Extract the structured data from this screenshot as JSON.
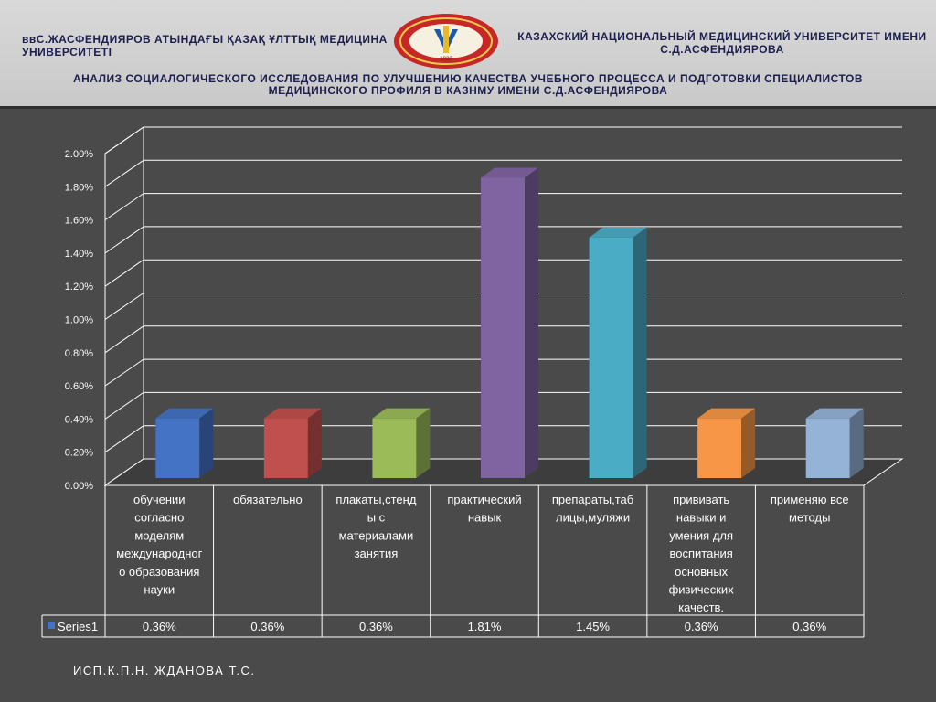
{
  "header": {
    "university_kz": "ввС.ЖАСФЕНДИЯРОВ АТЫНДАҒЫ  ҚАЗАҚ ҰЛТТЫҚ МЕДИЦИНА УНИВЕРСИТЕТІ",
    "university_ru": "КАЗАХСКИЙ НАЦИОНАЛЬНЫЙ МЕДИЦИНСКИЙ УНИВЕРСИТЕТ ИМЕНИ  С.Д.АСФЕНДИЯРОВА",
    "subtitle": "АНАЛИЗ СОЦИАЛОГИЧЕСКОГО ИССЛЕДОВАНИЯ ПО УЛУЧШЕНИЮ КАЧЕСТВА УЧЕБНОГО ПРОЦЕССА И ПОДГОТОВКИ СПЕЦИАЛИСТОВ МЕДИЦИНСКОГО ПРОФИЛЯ В КАЗНМУ ИМЕНИ С.Д.АСФЕНДИЯРОВА",
    "logo_text": "1930"
  },
  "chart_data": {
    "type": "bar",
    "categories": [
      "обучении согласно моделям международного образования науки",
      "обязательно",
      "плакаты,стенды с материалами занятия",
      "практический навык",
      "препараты,таблицы,муляжи",
      "прививать навыки и умения для воспитания основных физических качеств.",
      "применяю все методы"
    ],
    "category_lines": [
      [
        "обучении",
        "согласно",
        "моделям",
        "международног",
        "о образования",
        "науки"
      ],
      [
        "обязательно"
      ],
      [
        "плакаты,стенд",
        "ы с",
        "материалами",
        "занятия"
      ],
      [
        "практический",
        "навык"
      ],
      [
        "препараты,таб",
        "лицы,муляжи"
      ],
      [
        "прививать",
        "навыки и",
        "умения для",
        "воспитания",
        "основных",
        "физических",
        "качеств."
      ],
      [
        "применяю все",
        "методы"
      ]
    ],
    "series": [
      {
        "name": "Series1",
        "values": [
          0.36,
          0.36,
          0.36,
          1.81,
          1.45,
          0.36,
          0.36
        ],
        "labels": [
          "0.36%",
          "0.36%",
          "0.36%",
          "1.81%",
          "1.45%",
          "0.36%",
          "0.36%"
        ]
      }
    ],
    "yticks": [
      "0.00%",
      "0.20%",
      "0.40%",
      "0.60%",
      "0.80%",
      "1.00%",
      "1.20%",
      "1.40%",
      "1.60%",
      "1.80%",
      "2.00%"
    ],
    "ylim": [
      0,
      2.0
    ],
    "data_table": true,
    "grid": true,
    "bar_colors": [
      "#4472c4",
      "#c0504d",
      "#9bbb59",
      "#8064a2",
      "#4bacc6",
      "#f79646",
      "#95b3d7"
    ]
  },
  "footer": {
    "author": "ИСП.К.П.Н. ЖДАНОВА Т.С."
  }
}
